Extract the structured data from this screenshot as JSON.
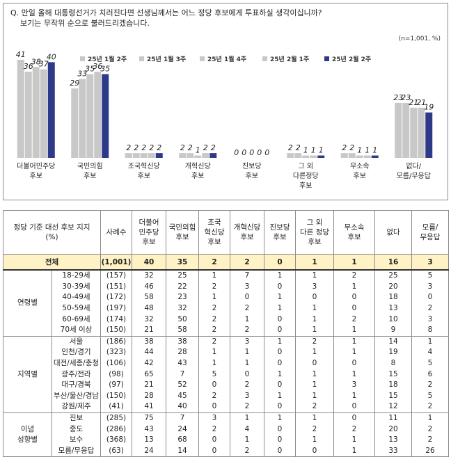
{
  "question": {
    "line1": "Q. 만일 올해 대통령선거가 치러진다면 선생님께서는 어느 정당 후보에게 투표하실 생각이십니까?",
    "line2": "    보기는 무작위 순으로 불러드리겠습니다."
  },
  "unit_label": "(n=1,001, %)",
  "chart_data": {
    "type": "bar",
    "categories": [
      "더불어민주당 후보",
      "국민의힘 후보",
      "조국혁신당 후보",
      "개혁신당 후보",
      "진보당 후보",
      "그 외 다른정당 후보",
      "무소속 후보",
      "없다/ 모름/무응답"
    ],
    "category_lines": [
      [
        "더불어민주당",
        "후보"
      ],
      [
        "국민의힘",
        "후보"
      ],
      [
        "조국혁신당",
        "후보"
      ],
      [
        "개혁신당",
        "후보"
      ],
      [
        "진보당",
        "후보"
      ],
      [
        "그 외",
        "다른정당",
        "후보"
      ],
      [
        "무소속",
        "후보"
      ],
      [
        "없다/",
        "모름/무응답"
      ]
    ],
    "series": [
      {
        "name": "25년 1월 2주",
        "color": "#c8c8c8",
        "values": [
          41,
          29,
          2,
          2,
          0,
          2,
          2,
          23
        ]
      },
      {
        "name": "25년 1월 3주",
        "color": "#c8c8c8",
        "values": [
          36,
          33,
          2,
          2,
          0,
          2,
          2,
          23
        ]
      },
      {
        "name": "25년 1월 4주",
        "color": "#c8c8c8",
        "values": [
          38,
          35,
          2,
          1,
          0,
          1,
          1,
          21
        ]
      },
      {
        "name": "25년 2월 1주",
        "color": "#c8c8c8",
        "values": [
          37,
          36,
          2,
          2,
          0,
          1,
          1,
          21
        ]
      },
      {
        "name": "25년 2월 2주",
        "color": "#2e3a87",
        "values": [
          40,
          35,
          2,
          2,
          0,
          1,
          1,
          19
        ]
      }
    ],
    "ylim": [
      0,
      50
    ],
    "legend_position": "top",
    "grid": false
  },
  "table": {
    "headers": [
      [
        "정당 기준 대선 후보 지지",
        "(%)"
      ],
      [
        "사례수"
      ],
      [
        "더불어",
        "민주당",
        "후보"
      ],
      [
        "국민의힘",
        "후보"
      ],
      [
        "조국",
        "혁신당",
        "후보"
      ],
      [
        "개혁신당",
        "후보"
      ],
      [
        "진보당",
        "후보"
      ],
      [
        "그 외",
        "다른 정당",
        "후보"
      ],
      [
        "무소속",
        "후보"
      ],
      [
        "없다"
      ],
      [
        "모름/",
        "무응답"
      ]
    ],
    "total": {
      "label": "전체",
      "n": "(1,001)",
      "values": [
        "40",
        "35",
        "2",
        "2",
        "0",
        "1",
        "1",
        "16",
        "3"
      ]
    },
    "groups": [
      {
        "label_lines": [
          "연령별"
        ],
        "rows": [
          {
            "label": "18-29세",
            "n": "(157)",
            "values": [
              "32",
              "25",
              "1",
              "7",
              "1",
              "1",
              "2",
              "25",
              "5"
            ]
          },
          {
            "label": "30-39세",
            "n": "(151)",
            "values": [
              "46",
              "22",
              "2",
              "3",
              "0",
              "3",
              "1",
              "20",
              "3"
            ]
          },
          {
            "label": "40-49세",
            "n": "(172)",
            "values": [
              "58",
              "23",
              "1",
              "0",
              "1",
              "0",
              "0",
              "18",
              "0"
            ]
          },
          {
            "label": "50-59세",
            "n": "(197)",
            "values": [
              "48",
              "32",
              "2",
              "2",
              "1",
              "1",
              "0",
              "13",
              "2"
            ]
          },
          {
            "label": "60-69세",
            "n": "(174)",
            "values": [
              "32",
              "50",
              "2",
              "1",
              "0",
              "1",
              "2",
              "10",
              "3"
            ]
          },
          {
            "label": "70세 이상",
            "n": "(150)",
            "values": [
              "21",
              "58",
              "2",
              "2",
              "0",
              "1",
              "1",
              "9",
              "8"
            ]
          }
        ]
      },
      {
        "label_lines": [
          "지역별"
        ],
        "rows": [
          {
            "label": "서울",
            "n": "(186)",
            "values": [
              "38",
              "38",
              "2",
              "3",
              "1",
              "2",
              "1",
              "14",
              "1"
            ]
          },
          {
            "label": "인천/경기",
            "n": "(323)",
            "values": [
              "44",
              "28",
              "1",
              "1",
              "0",
              "1",
              "1",
              "19",
              "4"
            ]
          },
          {
            "label": "대전/세종/충청",
            "n": "(106)",
            "values": [
              "42",
              "43",
              "1",
              "1",
              "0",
              "0",
              "0",
              "8",
              "5"
            ]
          },
          {
            "label": "광주/전라",
            "n": "(98)",
            "values": [
              "65",
              "7",
              "5",
              "0",
              "1",
              "1",
              "1",
              "15",
              "6"
            ]
          },
          {
            "label": "대구/경북",
            "n": "(97)",
            "values": [
              "21",
              "52",
              "0",
              "2",
              "0",
              "1",
              "3",
              "18",
              "2"
            ]
          },
          {
            "label": "부산/울산/경남",
            "n": "(150)",
            "values": [
              "28",
              "45",
              "2",
              "3",
              "1",
              "1",
              "1",
              "15",
              "5"
            ]
          },
          {
            "label": "강원/제주",
            "n": "(41)",
            "values": [
              "41",
              "40",
              "0",
              "2",
              "0",
              "2",
              "0",
              "12",
              "2"
            ]
          }
        ]
      },
      {
        "label_lines": [
          "이념",
          "성향별"
        ],
        "rows": [
          {
            "label": "진보",
            "n": "(285)",
            "values": [
              "75",
              "7",
              "3",
              "1",
              "1",
              "1",
              "0",
              "11",
              "1"
            ]
          },
          {
            "label": "중도",
            "n": "(286)",
            "values": [
              "43",
              "24",
              "2",
              "4",
              "0",
              "2",
              "2",
              "20",
              "2"
            ]
          },
          {
            "label": "보수",
            "n": "(368)",
            "values": [
              "13",
              "68",
              "0",
              "1",
              "0",
              "1",
              "1",
              "13",
              "2"
            ]
          },
          {
            "label": "모름/무응답",
            "n": "(63)",
            "values": [
              "24",
              "14",
              "0",
              "2",
              "0",
              "0",
              "1",
              "33",
              "26"
            ]
          }
        ]
      }
    ]
  }
}
